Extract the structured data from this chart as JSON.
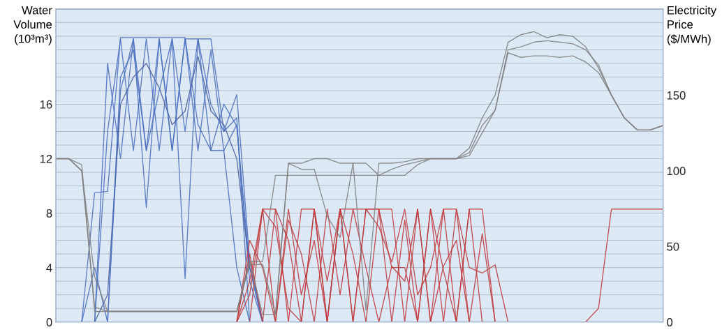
{
  "chart_data": {
    "type": "line",
    "ylabel": "Water Volume (10³m³)",
    "y2label": "Electricity Price ($/MWh)",
    "categories": [
      null,
      null,
      null,
      null,
      null,
      null,
      null,
      null,
      null,
      null,
      null,
      null,
      null,
      null,
      null,
      null,
      null,
      null,
      null,
      null,
      null,
      null,
      null,
      null,
      null,
      null,
      null,
      null,
      null,
      null,
      null,
      null,
      null,
      null,
      null,
      null,
      null,
      null,
      null,
      null,
      null,
      null,
      null,
      null,
      null,
      null,
      null,
      null
    ],
    "ylim": [
      0,
      23
    ],
    "yticks": [
      0,
      {
        "value": 1,
        "label": null
      },
      {
        "value": 2,
        "label": null
      },
      {
        "value": 3,
        "label": null
      },
      4,
      {
        "value": 5,
        "label": null
      },
      {
        "value": 6,
        "label": null
      },
      {
        "value": 7,
        "label": null
      },
      8,
      {
        "value": 9,
        "label": null
      },
      {
        "value": 10,
        "label": null
      },
      {
        "value": 11,
        "label": null
      },
      12,
      {
        "value": 13,
        "label": null
      },
      {
        "value": 14,
        "label": null
      },
      {
        "value": 15,
        "label": null
      },
      16,
      {
        "value": 17,
        "label": null
      },
      {
        "value": 18,
        "label": null
      },
      {
        "value": 19,
        "label": null
      },
      {
        "value": 20,
        "label": null
      },
      {
        "value": 21,
        "label": null
      },
      {
        "value": 22,
        "label": null
      },
      {
        "value": 23,
        "label": null
      }
    ],
    "y2lim": [
      0,
      207
    ],
    "y2ticks": [
      0,
      50,
      100,
      150
    ],
    "grid": "y",
    "series": [
      {
        "color": "#4a6fbf",
        "values": [
          0,
          0,
          0,
          9.5,
          9.6,
          20.9,
          20.9,
          20.9,
          20.9,
          20.9,
          20.9,
          14.5,
          12.6,
          12.6,
          4,
          0,
          0,
          0,
          0,
          0,
          0,
          0,
          0,
          0,
          0,
          0,
          0,
          0,
          0,
          0,
          0,
          0,
          0,
          0,
          0,
          0,
          0,
          0,
          0,
          0,
          0,
          0,
          0,
          0,
          0,
          0,
          0,
          0
        ]
      },
      {
        "color": "#4a6fbf",
        "values": [
          0,
          0,
          0,
          0,
          14,
          20.8,
          12.6,
          20.8,
          12.6,
          20.8,
          14,
          20.8,
          16,
          14,
          15,
          0,
          0,
          0,
          0,
          0,
          0,
          0,
          0,
          0,
          0,
          0,
          0,
          0,
          0,
          0,
          0,
          0,
          0,
          0,
          0,
          0,
          0,
          0,
          0,
          0,
          0,
          0,
          0,
          0,
          0,
          0,
          0,
          0
        ]
      },
      {
        "color": "#4a6fbf",
        "values": [
          0,
          0,
          0,
          4,
          0,
          17,
          20.8,
          8.4,
          20.8,
          12.6,
          20.8,
          12.6,
          20,
          12.6,
          14.5,
          3,
          0,
          0,
          0,
          0,
          0,
          0,
          0,
          0,
          0,
          0,
          0,
          0,
          0,
          0,
          0,
          0,
          0,
          0,
          0,
          0,
          0,
          0,
          0,
          0,
          0,
          0,
          0,
          0,
          0,
          0,
          0,
          0
        ]
      },
      {
        "color": "#4a5f9f",
        "values": [
          0,
          0,
          0,
          0,
          2,
          16,
          18,
          19,
          17.2,
          14.5,
          15.5,
          19.5,
          15.5,
          14.5,
          12,
          4,
          0,
          0,
          0,
          0,
          0,
          0,
          0,
          0,
          0,
          0,
          0,
          0,
          0,
          0,
          0,
          0,
          0,
          0,
          0,
          0,
          0,
          0,
          0,
          0,
          0,
          0,
          0,
          0,
          0,
          0,
          0,
          0
        ]
      },
      {
        "color": "#4a6fbf",
        "values": [
          0,
          0,
          0,
          0,
          0,
          18,
          20,
          12.6,
          17,
          20.8,
          3.2,
          20.8,
          20.8,
          14,
          16.7,
          4.5,
          0,
          0,
          0,
          0,
          0,
          0,
          0,
          0,
          0,
          0,
          0,
          0,
          0,
          0,
          0,
          0,
          0,
          0,
          0,
          0,
          0,
          0,
          0,
          0,
          0,
          0,
          0,
          0,
          0,
          0,
          0,
          0
        ]
      },
      {
        "color": "#4a6fbf",
        "values": [
          0,
          0,
          0,
          0,
          19,
          12,
          20.8,
          12.6,
          20.8,
          12.6,
          20.8,
          20.8,
          12.6,
          16,
          14.4,
          4,
          0,
          0,
          0,
          0,
          0,
          0,
          0,
          0,
          0,
          0,
          0,
          0,
          0,
          0,
          0,
          0,
          0,
          0,
          0,
          0,
          0,
          0,
          0,
          0,
          0,
          0,
          0,
          0,
          0,
          0,
          0,
          0
        ]
      },
      {
        "color": "#c0393b",
        "values": [
          null,
          null,
          null,
          null,
          null,
          null,
          null,
          null,
          null,
          null,
          null,
          null,
          null,
          null,
          0,
          2,
          8.3,
          8.3,
          0,
          8.3,
          8.3,
          0,
          8.3,
          0,
          8.3,
          8.3,
          8.3,
          0,
          8.3,
          0,
          8.3,
          8.3,
          4,
          3.6,
          4.2,
          0,
          null,
          null,
          null,
          null,
          null,
          0,
          1,
          8.3,
          8.3,
          8.3,
          8.3,
          8.3
        ]
      },
      {
        "color": "#c0393b",
        "values": [
          null,
          null,
          null,
          null,
          null,
          null,
          null,
          null,
          null,
          null,
          null,
          null,
          null,
          null,
          0,
          5,
          0,
          8.3,
          6,
          0,
          8.3,
          0,
          8.3,
          5,
          0,
          8.3,
          4,
          4,
          0,
          8.3,
          0,
          8.3,
          0,
          null,
          null,
          null,
          null,
          null,
          null,
          null,
          null,
          null,
          null,
          null,
          null,
          null,
          null,
          null
        ]
      },
      {
        "color": "#c0393b",
        "values": [
          null,
          null,
          null,
          null,
          null,
          null,
          null,
          null,
          null,
          null,
          null,
          null,
          null,
          null,
          null,
          0,
          8.3,
          7,
          1,
          0,
          8.3,
          3,
          8.3,
          0,
          8.3,
          7,
          4.4,
          8.3,
          2,
          4,
          8.3,
          0,
          8.3,
          8.3,
          0,
          null,
          null,
          null,
          null,
          null,
          null,
          null,
          null,
          null,
          null,
          null,
          null,
          null
        ]
      },
      {
        "color": "#c0393b",
        "values": [
          null,
          null,
          null,
          null,
          null,
          null,
          null,
          null,
          null,
          null,
          null,
          null,
          null,
          null,
          0,
          6,
          4,
          0,
          7.5,
          5,
          0,
          8.3,
          2,
          8.3,
          4,
          0,
          4.1,
          3,
          8.3,
          0,
          4.1,
          6,
          0,
          6.5,
          0,
          null,
          null,
          null,
          null,
          null,
          null,
          null,
          null,
          null,
          null,
          null,
          null,
          null
        ]
      },
      {
        "color": "#c0393b",
        "values": [
          null,
          null,
          null,
          null,
          null,
          null,
          null,
          null,
          null,
          null,
          null,
          null,
          null,
          null,
          0,
          3,
          8.3,
          0,
          8.3,
          2,
          6,
          0,
          8.3,
          8.3,
          8.3,
          8.3,
          0,
          7.5,
          0,
          8.3,
          3.8,
          0,
          8.3,
          0,
          null,
          null,
          null,
          null,
          null,
          null,
          null,
          null,
          null,
          null,
          null,
          null,
          null,
          null
        ]
      },
      {
        "color": "#7f7f7f",
        "axis": "y2",
        "values": [
          108,
          108,
          100,
          10,
          7,
          7,
          7,
          7,
          7,
          7,
          7,
          7,
          7,
          7,
          7,
          40,
          40,
          97,
          97,
          97,
          97,
          97,
          97,
          97,
          97,
          97,
          97,
          97,
          104,
          108,
          108,
          108,
          112,
          130,
          140,
          180,
          182,
          185,
          186,
          185,
          184,
          180,
          170,
          150,
          135,
          127,
          127,
          130
        ]
      },
      {
        "color": "#7f7f7f",
        "axis": "y2",
        "values": [
          108,
          108,
          100,
          30,
          7,
          7,
          7,
          7,
          7,
          7,
          7,
          7,
          7,
          7,
          7,
          40,
          5,
          5,
          105,
          105,
          108,
          108,
          105,
          105,
          8,
          105,
          105,
          106,
          108,
          108,
          108,
          108,
          115,
          135,
          150,
          185,
          190,
          192,
          188,
          190,
          189,
          182,
          168,
          150,
          135,
          127,
          127,
          130
        ]
      },
      {
        "color": "#7f7f7f",
        "axis": "y2",
        "values": [
          108,
          108,
          104,
          7,
          7,
          7,
          7,
          7,
          7,
          7,
          7,
          7,
          7,
          7,
          7,
          38,
          38,
          5,
          105,
          101,
          101,
          70,
          56,
          105,
          105,
          97,
          101,
          104,
          106,
          108,
          108,
          108,
          110,
          125,
          140,
          178,
          175,
          176,
          176,
          175,
          176,
          172,
          165,
          150,
          135,
          127,
          127,
          130
        ]
      }
    ]
  }
}
